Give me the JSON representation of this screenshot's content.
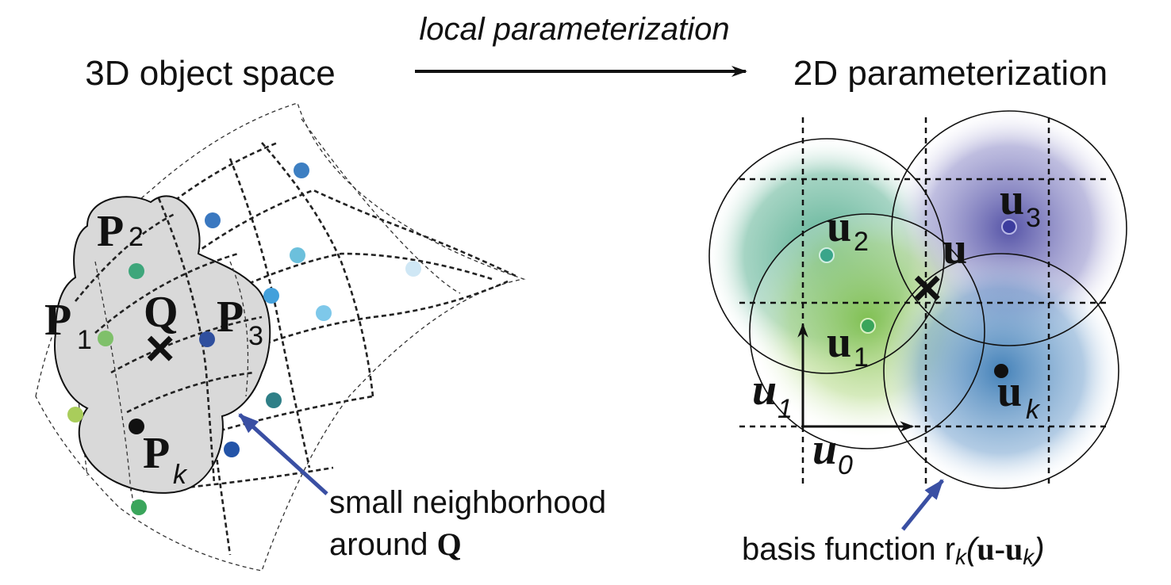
{
  "titles": {
    "arrow_label": "local parameterization",
    "left": "3D object space",
    "right": "2D parameterization"
  },
  "left_panel": {
    "points": [
      {
        "label": "P",
        "sub": "1",
        "color": "#7fc06a"
      },
      {
        "label": "P",
        "sub": "2",
        "color": "#3ea67b"
      },
      {
        "label": "P",
        "sub": "3",
        "color": "#2f4f9e"
      },
      {
        "label": "P",
        "sub": "k",
        "color": "#111111"
      }
    ],
    "query_label": "Q",
    "query_marker": "×",
    "callout": {
      "line1": "small neighborhood",
      "line2_prefix": "around ",
      "line2_bold": "Q"
    }
  },
  "right_panel": {
    "points": [
      {
        "label": "u",
        "sub": "1"
      },
      {
        "label": "u",
        "sub": "2"
      },
      {
        "label": "u",
        "sub": "3"
      },
      {
        "label": "u",
        "sub": "k"
      }
    ],
    "query_label": "u",
    "query_marker": "×",
    "axis_u1": {
      "label": "u",
      "sub": "1"
    },
    "axis_u0": {
      "label": "u",
      "sub": "0"
    },
    "callout": {
      "text": "basis function ",
      "formula_r": "r",
      "formula_k": "k",
      "formula_open": "(",
      "formula_u": "u",
      "formula_dash": "-",
      "formula_u2": "u",
      "formula_k2": "k",
      "formula_close": ")"
    }
  },
  "colors": {
    "arrow": "#111111",
    "callout_arrow": "#3a4fa3",
    "neighborhood_fill": "#d9d9d9",
    "circle_green": "#4aa98a",
    "circle_lightgreen": "#8cc75a",
    "circle_purple": "#5a57a8",
    "circle_blue": "#3f7fb7"
  }
}
